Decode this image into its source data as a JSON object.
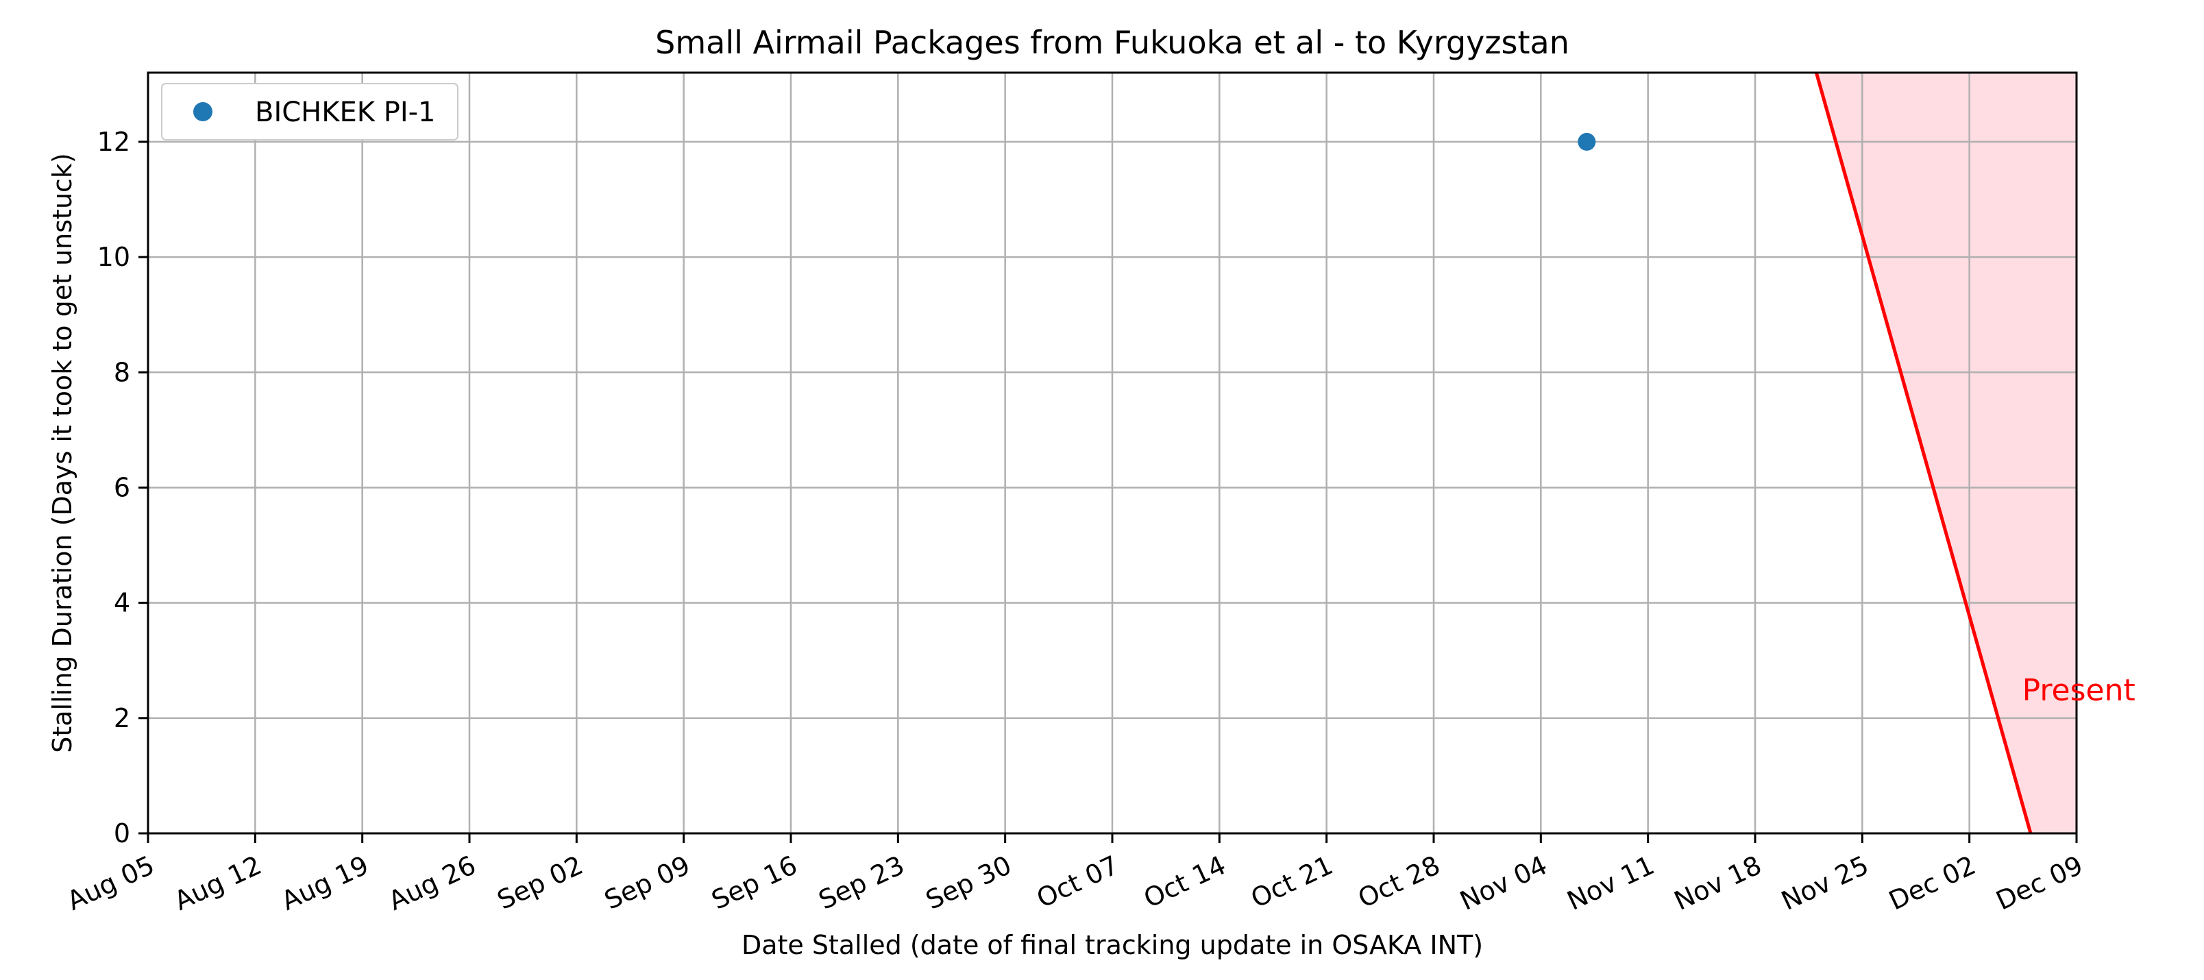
{
  "chart_data": {
    "type": "scatter",
    "title": "Small Airmail Packages from Fukuoka et al - to Kyrgyzstan",
    "xlabel": "Date Stalled (date of final tracking update in OSAKA INT)",
    "ylabel": "Stalling Duration (Days it took to get unstuck)",
    "x_tick_labels": [
      "Aug 05",
      "Aug 12",
      "Aug 19",
      "Aug 26",
      "Sep 02",
      "Sep 09",
      "Sep 16",
      "Sep 23",
      "Sep 30",
      "Oct 07",
      "Oct 14",
      "Oct 21",
      "Oct 28",
      "Nov 04",
      "Nov 11",
      "Nov 18",
      "Nov 25",
      "Dec 02",
      "Dec 09"
    ],
    "y_ticks": [
      0,
      2,
      4,
      6,
      8,
      10,
      12
    ],
    "xlim": [
      "Aug 05",
      "Dec 09"
    ],
    "ylim": [
      0,
      13.2
    ],
    "grid": true,
    "legend_position": "upper-left",
    "series": [
      {
        "name": "BICHKEK PI-1",
        "color": "#1f77b4",
        "points": [
          {
            "x": "Nov 07",
            "y": 12
          }
        ]
      }
    ],
    "present_line": {
      "label": "Present",
      "color": "#ff0000",
      "shade_color": "#ffdde2",
      "points": [
        {
          "x": "Nov 22",
          "y": 13.2
        },
        {
          "x": "Dec 06",
          "y": 0
        }
      ],
      "label_at": {
        "x": "Dec 05",
        "y": 2.5
      }
    }
  }
}
